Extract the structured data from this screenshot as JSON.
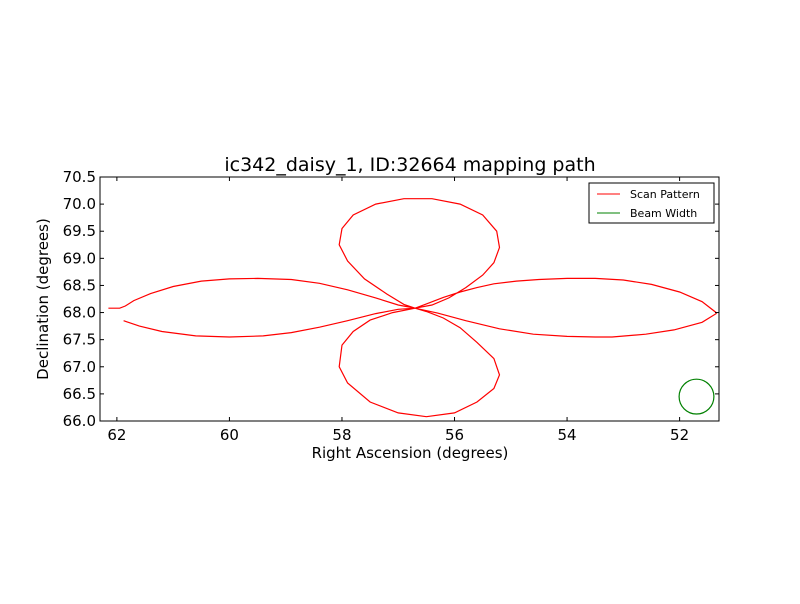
{
  "chart_data": {
    "type": "line",
    "title": "ic342_daisy_1, ID:32664 mapping path",
    "xlabel": "Right Ascension (degrees)",
    "ylabel": "Declination (degrees)",
    "xlim": [
      62.3,
      51.3
    ],
    "ylim": [
      66.0,
      70.5
    ],
    "x_inverted": true,
    "xticks": [
      "62",
      "60",
      "58",
      "56",
      "54",
      "52"
    ],
    "xtick_values": [
      62,
      60,
      58,
      56,
      54,
      52
    ],
    "yticks": [
      "66.0",
      "66.5",
      "67.0",
      "67.5",
      "68.0",
      "68.5",
      "69.0",
      "69.5",
      "70.0",
      "70.5"
    ],
    "ytick_values": [
      66.0,
      66.5,
      67.0,
      67.5,
      68.0,
      68.5,
      69.0,
      69.5,
      70.0,
      70.5
    ],
    "legend_position": "top-right",
    "series": [
      {
        "name": "Scan Pattern",
        "color": "#ff0000",
        "x": [
          61.88,
          61.6,
          61.2,
          60.6,
          60.0,
          59.4,
          58.9,
          58.4,
          57.9,
          57.4,
          57.0,
          56.7,
          56.4,
          56.1,
          55.8,
          55.5,
          55.3,
          55.2,
          55.25,
          55.5,
          55.9,
          56.4,
          56.9,
          57.4,
          57.8,
          58.0,
          58.05,
          57.9,
          57.6,
          57.2,
          56.9,
          56.7,
          56.5,
          56.2,
          55.9,
          55.6,
          55.3,
          54.9,
          54.5,
          54.0,
          53.5,
          53.0,
          52.5,
          52.0,
          51.6,
          51.35,
          51.35,
          51.6,
          52.1,
          52.6,
          53.2,
          53.5,
          54.0,
          54.6,
          55.2,
          55.8,
          56.3,
          56.7,
          57.1,
          57.5,
          57.8,
          58.0,
          58.05,
          57.9,
          57.5,
          57.0,
          56.5,
          56.0,
          55.6,
          55.3,
          55.2,
          55.3,
          55.6,
          55.9,
          56.2,
          56.5,
          56.7,
          57.0,
          57.4,
          57.9,
          58.4,
          58.9,
          59.5,
          60.0,
          60.5,
          61.0,
          61.4,
          61.7,
          61.85,
          61.95,
          62.0,
          62.15
        ],
        "y": [
          67.85,
          67.75,
          67.65,
          67.57,
          67.55,
          67.57,
          67.63,
          67.73,
          67.85,
          67.98,
          68.06,
          68.08,
          68.14,
          68.27,
          68.46,
          68.69,
          68.92,
          69.2,
          69.5,
          69.8,
          70.0,
          70.1,
          70.1,
          70.0,
          69.8,
          69.55,
          69.25,
          68.95,
          68.62,
          68.34,
          68.15,
          68.08,
          68.16,
          68.28,
          68.38,
          68.46,
          68.53,
          68.58,
          68.61,
          68.63,
          68.63,
          68.6,
          68.52,
          68.38,
          68.2,
          68.0,
          67.98,
          67.82,
          67.68,
          67.6,
          67.55,
          67.55,
          67.56,
          67.6,
          67.7,
          67.85,
          67.99,
          68.08,
          68.0,
          67.86,
          67.65,
          67.4,
          67.0,
          66.7,
          66.35,
          66.15,
          66.08,
          66.15,
          66.35,
          66.6,
          66.85,
          67.15,
          67.45,
          67.72,
          67.9,
          68.02,
          68.08,
          68.14,
          68.27,
          68.42,
          68.54,
          68.61,
          68.63,
          68.62,
          68.58,
          68.48,
          68.35,
          68.22,
          68.12,
          68.08,
          68.08,
          68.08
        ]
      },
      {
        "name": "Beam Width",
        "color": "#008000",
        "shape": "circle",
        "center": [
          51.7,
          66.45
        ],
        "radius_ra": 0.31
      }
    ]
  }
}
